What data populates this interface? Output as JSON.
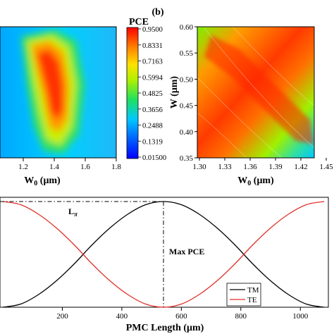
{
  "panel_label": "(b)",
  "colorbar": {
    "title": "PCE",
    "ticks": [
      "0.9500",
      "0.8331",
      "0.7163",
      "0.5994",
      "0.4825",
      "0.3656",
      "0.2488",
      "0.1319",
      "0.01500"
    ]
  },
  "chart_data": [
    {
      "type": "heatmap",
      "panel": "left",
      "xlabel": "W0 (μm)",
      "xlabel_main": "W",
      "xlabel_sub": "0",
      "xlabel_unit": " (μm)",
      "x_ticks": [
        "1.2",
        "1.4",
        "1.6",
        "1.8"
      ],
      "xlim": [
        1.05,
        1.8
      ],
      "color_range": [
        0.015,
        0.95
      ],
      "peak_region": {
        "x": [
          1.3,
          1.45
        ],
        "value": 0.95
      }
    },
    {
      "type": "heatmap",
      "panel": "right",
      "xlabel": "W0 (μm)",
      "xlabel_main": "W",
      "xlabel_sub": "0",
      "xlabel_unit": " (μm)",
      "ylabel": "W (μm)",
      "x_ticks": [
        "1.30",
        "1.33",
        "1.36",
        "1.39",
        "1.42",
        "1.45"
      ],
      "y_ticks": [
        "0.60",
        "0.55",
        "0.50",
        "0.45",
        "0.40",
        "0.35"
      ],
      "xlim": [
        1.3,
        1.45
      ],
      "ylim": [
        0.35,
        0.6
      ],
      "color_range": [
        0.015,
        0.95
      ]
    },
    {
      "type": "line",
      "panel": "bottom",
      "xlabel": "PMC Length (μm)",
      "x_ticks": [
        "200",
        "400",
        "600",
        "800",
        "1000"
      ],
      "xlim": [
        0,
        1080
      ],
      "ylim": [
        0,
        1
      ],
      "x": [
        0,
        60,
        120,
        180,
        240,
        300,
        360,
        420,
        480,
        540,
        600,
        660,
        720,
        780,
        840,
        900,
        960,
        1020,
        1080
      ],
      "series": [
        {
          "name": "TM",
          "color": "#000000",
          "values": [
            0.0,
            0.03,
            0.12,
            0.25,
            0.41,
            0.59,
            0.75,
            0.88,
            0.97,
            1.0,
            0.97,
            0.88,
            0.75,
            0.59,
            0.41,
            0.25,
            0.12,
            0.03,
            0.0
          ]
        },
        {
          "name": "TE",
          "color": "#e0302a",
          "values": [
            1.0,
            0.97,
            0.88,
            0.75,
            0.59,
            0.41,
            0.25,
            0.12,
            0.03,
            0.0,
            0.03,
            0.12,
            0.25,
            0.41,
            0.59,
            0.75,
            0.88,
            0.97,
            1.0
          ]
        }
      ],
      "annotations": {
        "l_pi_main": "L",
        "l_pi_sub": "π",
        "max_pce": "Max PCE",
        "max_pce_x": 540
      },
      "legend_position": "bottom-right"
    }
  ]
}
